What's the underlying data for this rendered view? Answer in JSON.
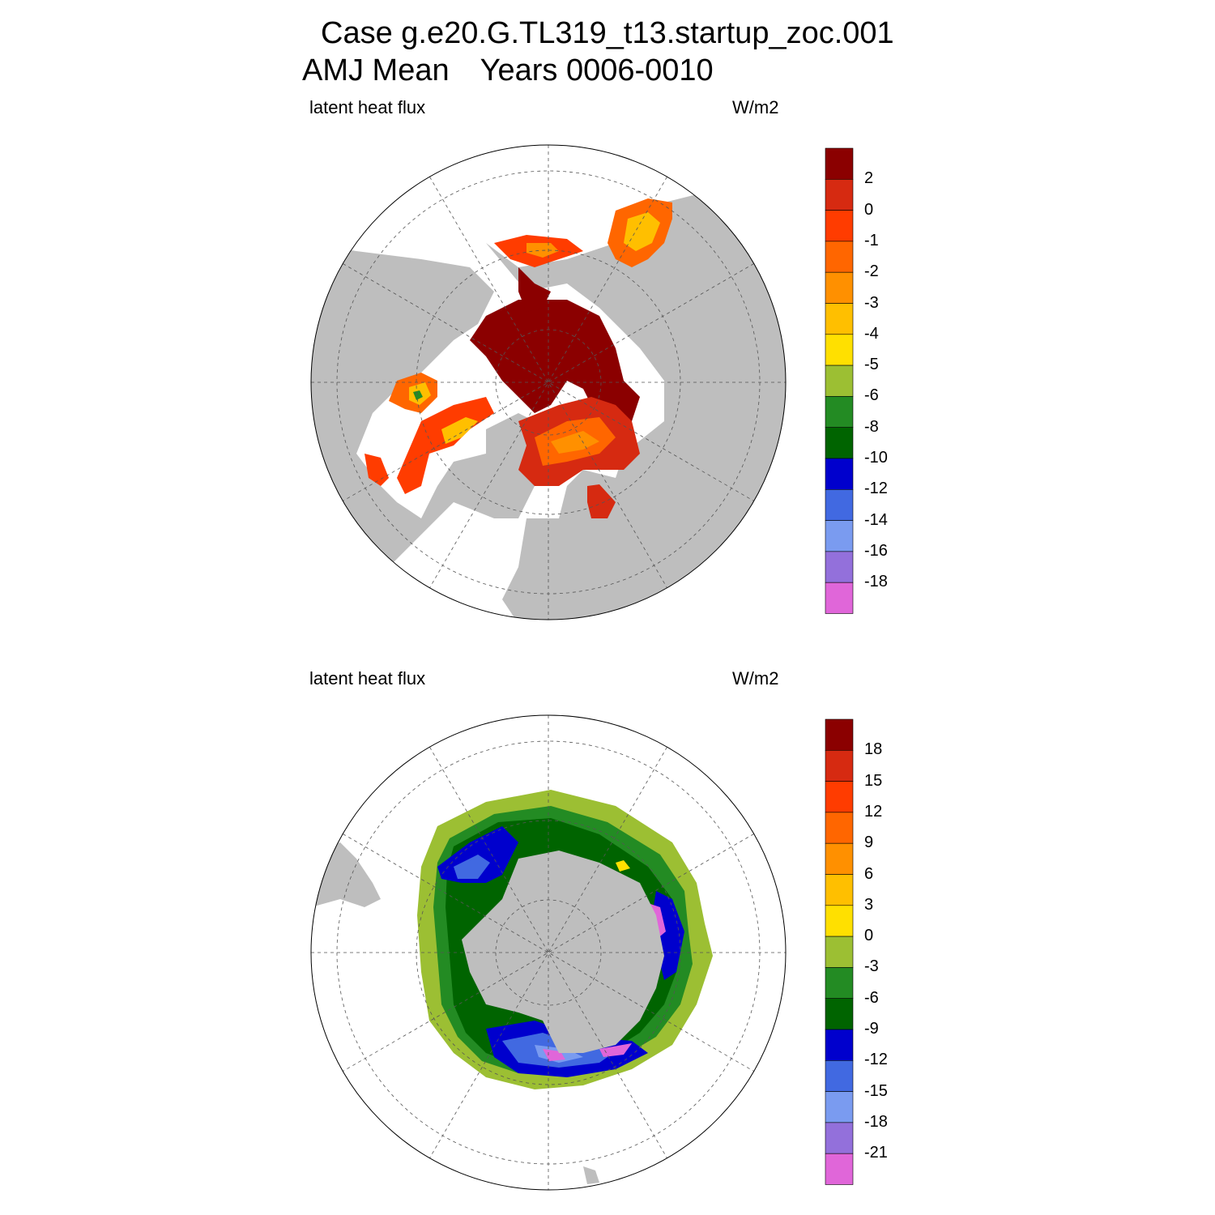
{
  "title": {
    "line1": "Case g.e20.G.TL319_t13.startup_zoc.001",
    "season": "AMJ Mean",
    "years": "Years 0006-0010"
  },
  "colors": {
    "land": "#bebebe",
    "ocean_empty": "#ffffff",
    "palette": [
      "#8b0000",
      "#d62a11",
      "#ff3c00",
      "#ff6600",
      "#ff9000",
      "#ffbf00",
      "#ffe000",
      "#9cbf33",
      "#238b23",
      "#006400",
      "#0000cd",
      "#4169e1",
      "#7a9bf0",
      "#9370db",
      "#e066d9"
    ]
  },
  "panels": [
    {
      "hemisphere": "north",
      "variable_label": "latent heat flux",
      "units_label": "W/m2",
      "colorbar_labels": [
        "2",
        "0",
        "-1",
        "-2",
        "-3",
        "-4",
        "-5",
        "-6",
        "-8",
        "-10",
        "-12",
        "-14",
        "-16",
        "-18"
      ]
    },
    {
      "hemisphere": "south",
      "variable_label": "latent heat flux",
      "units_label": "W/m2",
      "colorbar_labels": [
        "18",
        "15",
        "12",
        "9",
        "6",
        "3",
        "0",
        "-3",
        "-6",
        "-9",
        "-12",
        "-15",
        "-18",
        "-21"
      ]
    }
  ]
}
